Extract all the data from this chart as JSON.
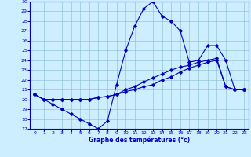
{
  "xlabel": "Graphe des températures (°c)",
  "background_color": "#cceeff",
  "line_color": "#0000bb",
  "xlim": [
    -0.5,
    23.5
  ],
  "ylim": [
    17,
    30
  ],
  "yticks": [
    17,
    18,
    19,
    20,
    21,
    22,
    23,
    24,
    25,
    26,
    27,
    28,
    29,
    30
  ],
  "xticks": [
    0,
    1,
    2,
    3,
    4,
    5,
    6,
    7,
    8,
    9,
    10,
    11,
    12,
    13,
    14,
    15,
    16,
    17,
    18,
    19,
    20,
    21,
    22,
    23
  ],
  "line1_x": [
    0,
    1,
    2,
    3,
    4,
    5,
    6,
    7,
    8,
    9,
    10,
    11,
    12,
    13,
    14,
    15,
    16,
    17,
    18,
    19,
    20,
    21,
    22,
    23
  ],
  "line1_y": [
    20.5,
    20.0,
    19.5,
    19.0,
    18.5,
    18.0,
    17.5,
    17.0,
    17.8,
    21.5,
    25.0,
    27.5,
    29.3,
    30.0,
    28.5,
    28.0,
    27.0,
    23.8,
    24.0,
    25.5,
    25.5,
    24.0,
    21.0,
    21.0
  ],
  "line2_x": [
    0,
    1,
    2,
    3,
    4,
    5,
    6,
    7,
    8,
    9,
    10,
    11,
    12,
    13,
    14,
    15,
    16,
    17,
    18,
    19,
    20,
    21,
    22,
    23
  ],
  "line2_y": [
    20.5,
    20.0,
    20.0,
    20.0,
    20.0,
    20.0,
    20.0,
    20.2,
    20.3,
    20.5,
    21.0,
    21.3,
    21.8,
    22.2,
    22.6,
    23.0,
    23.3,
    23.5,
    23.8,
    24.0,
    24.2,
    21.3,
    21.0,
    21.0
  ],
  "line3_x": [
    0,
    1,
    2,
    3,
    4,
    5,
    6,
    7,
    8,
    9,
    10,
    11,
    12,
    13,
    14,
    15,
    16,
    17,
    18,
    19,
    20,
    21,
    22,
    23
  ],
  "line3_y": [
    20.5,
    20.0,
    20.0,
    20.0,
    20.0,
    20.0,
    20.0,
    20.2,
    20.3,
    20.5,
    20.8,
    21.0,
    21.3,
    21.5,
    22.0,
    22.3,
    22.8,
    23.2,
    23.5,
    23.8,
    24.0,
    21.3,
    21.0,
    21.0
  ]
}
